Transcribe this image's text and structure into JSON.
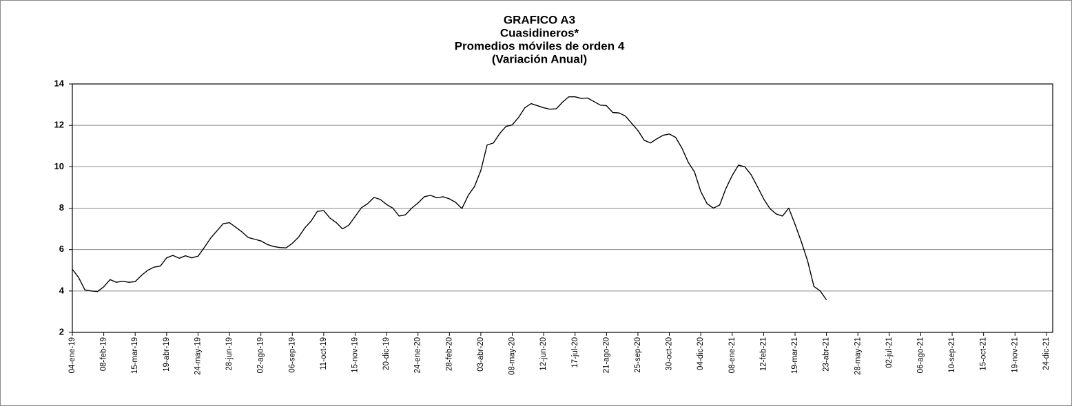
{
  "chart_data": {
    "type": "line",
    "title": "GRAFICO A3",
    "subtitle": [
      "Cuasidineros*",
      "Promedios móviles de orden 4",
      "(Variación Anual)"
    ],
    "categories": [
      "04-ene-19",
      null,
      null,
      null,
      null,
      "08-feb-19",
      null,
      null,
      null,
      null,
      "15-mar-19",
      null,
      null,
      null,
      null,
      "19-abr-19",
      null,
      null,
      null,
      null,
      "24-may-19",
      null,
      null,
      null,
      null,
      "28-jun-19",
      null,
      null,
      null,
      null,
      "02-ago-19",
      null,
      null,
      null,
      null,
      "06-sep-19",
      null,
      null,
      null,
      null,
      "11-oct-19",
      null,
      null,
      null,
      null,
      "15-nov-19",
      null,
      null,
      null,
      null,
      "20-dic-19",
      null,
      null,
      null,
      null,
      "24-ene-20",
      null,
      null,
      null,
      null,
      "28-feb-20",
      null,
      null,
      null,
      null,
      "03-abr-20",
      null,
      null,
      null,
      null,
      "08-may-20",
      null,
      null,
      null,
      null,
      "12-jun-20",
      null,
      null,
      null,
      null,
      "17-jul-20",
      null,
      null,
      null,
      null,
      "21-ago-20",
      null,
      null,
      null,
      null,
      "25-sep-20",
      null,
      null,
      null,
      null,
      "30-oct-20",
      null,
      null,
      null,
      null,
      "04-dic-20",
      null,
      null,
      null,
      null,
      "08-ene-21",
      null,
      null,
      null,
      null,
      "12-feb-21",
      null,
      null,
      null,
      null,
      "19-mar-21",
      null,
      null,
      null,
      null,
      "23-abr-21",
      null,
      null,
      null,
      null,
      "28-may-21",
      null,
      null,
      null,
      null,
      "02-jul-21",
      null,
      null,
      null,
      null,
      "06-ago-21",
      null,
      null,
      null,
      null,
      "10-sep-21",
      null,
      null,
      null,
      null,
      "15-oct-21",
      null,
      null,
      null,
      null,
      "19-nov-21",
      null,
      null,
      null,
      null,
      "24-dic-21"
    ],
    "values": [
      5.05,
      4.65,
      4.05,
      4.0,
      3.97,
      4.2,
      4.55,
      4.42,
      4.47,
      4.42,
      4.45,
      4.75,
      5.0,
      5.15,
      5.2,
      5.6,
      5.72,
      5.58,
      5.7,
      5.6,
      5.68,
      6.1,
      6.55,
      6.9,
      7.25,
      7.3,
      7.08,
      6.85,
      6.58,
      6.5,
      6.42,
      6.25,
      6.15,
      6.1,
      6.08,
      6.3,
      6.6,
      7.05,
      7.38,
      7.85,
      7.88,
      7.52,
      7.3,
      7.0,
      7.18,
      7.6,
      8.02,
      8.22,
      8.52,
      8.42,
      8.18,
      8.0,
      7.62,
      7.68,
      8.0,
      8.25,
      8.55,
      8.62,
      8.5,
      8.55,
      8.45,
      8.28,
      7.98,
      8.62,
      9.05,
      9.82,
      11.05,
      11.15,
      11.6,
      11.95,
      12.02,
      12.38,
      12.85,
      13.05,
      12.95,
      12.85,
      12.78,
      12.8,
      13.12,
      13.38,
      13.38,
      13.3,
      13.32,
      13.15,
      12.98,
      12.95,
      12.62,
      12.6,
      12.45,
      12.1,
      11.75,
      11.28,
      11.15,
      11.35,
      11.52,
      11.58,
      11.42,
      10.9,
      10.22,
      9.75,
      8.8,
      8.22,
      8.0,
      8.15,
      8.95,
      9.58,
      10.08,
      10.0,
      9.62,
      9.05,
      8.45,
      7.98,
      7.72,
      7.62,
      8.0,
      7.22,
      6.38,
      5.45,
      4.22,
      4.0,
      3.57,
      null,
      null,
      null,
      null,
      null,
      null,
      null,
      null,
      null,
      null,
      null,
      null,
      null,
      null,
      null,
      null,
      null,
      null,
      null,
      null,
      null,
      null,
      null,
      null,
      null,
      null,
      null,
      null,
      null,
      null,
      null,
      null,
      null,
      null,
      null
    ],
    "color": "#000000",
    "ylim": [
      2,
      14
    ],
    "yticks": [
      2,
      4,
      6,
      8,
      10,
      12,
      14
    ],
    "grid": true
  }
}
